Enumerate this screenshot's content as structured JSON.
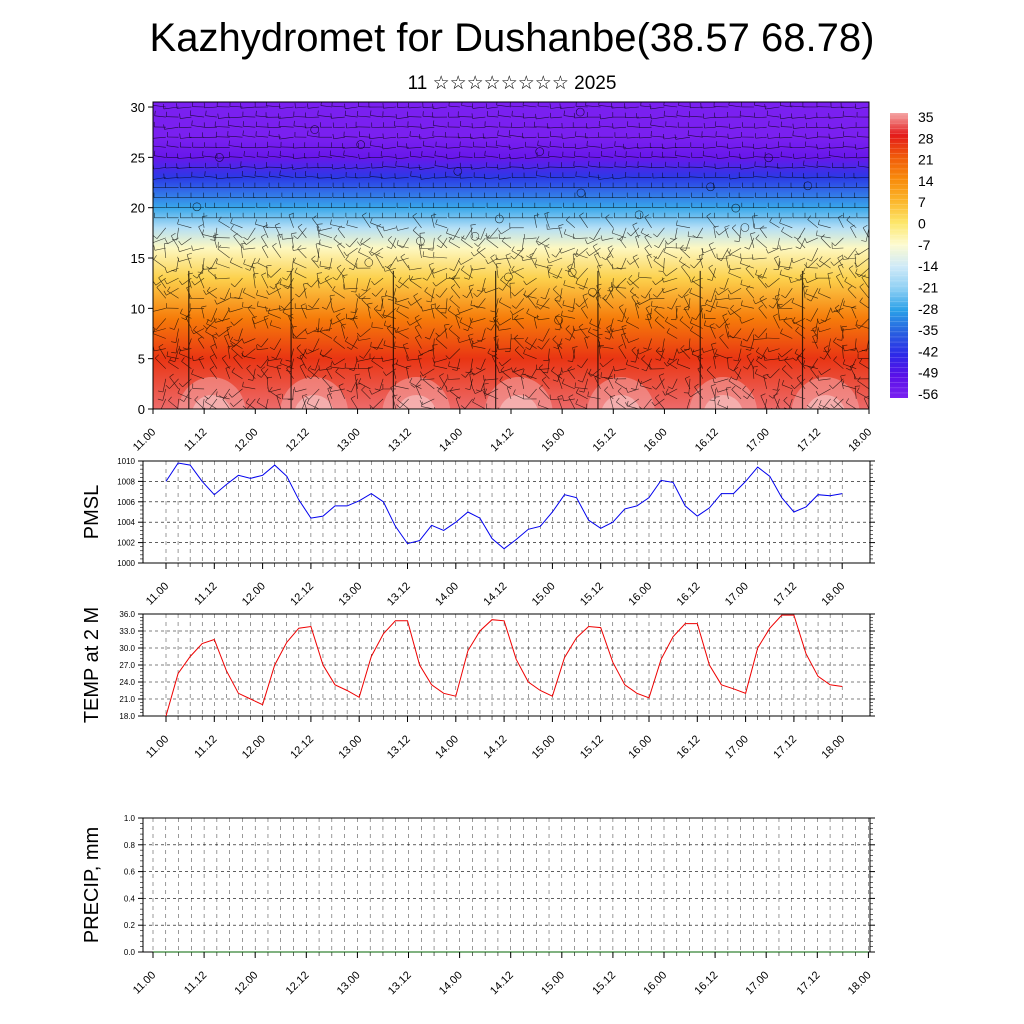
{
  "header": {
    "title": "Kazhydromet for Dushanbe(38.57 68.78)",
    "subtitle": "11 ☆☆☆☆☆☆☆☆ 2025"
  },
  "chart_data": [
    {
      "id": "temperature-cross-section",
      "type": "heatmap",
      "title": "",
      "xlabel": "",
      "ylabel": "",
      "x_tick_labels": [
        "11.00",
        "11.12",
        "12.00",
        "12.12",
        "13.00",
        "13.12",
        "14.00",
        "14.12",
        "15.00",
        "15.12",
        "16.00",
        "16.12",
        "17.00",
        "17.12",
        "18.00"
      ],
      "y_ticks": [
        0,
        5,
        10,
        15,
        20,
        25,
        30
      ],
      "ylim": [
        0,
        30.5
      ],
      "colorbar": {
        "labels": [
          "35",
          "28",
          "21",
          "14",
          "7",
          "0",
          "-7",
          "-14",
          "-21",
          "-28",
          "-35",
          "-42",
          "-49",
          "-56"
        ],
        "colors_top_to_bottom": [
          "#f4a6a6",
          "#e41a1a",
          "#f05a0a",
          "#f88a0a",
          "#fbb52a",
          "#fde668",
          "#fdfbd0",
          "#cfeaf8",
          "#8fd0f4",
          "#2aa0e8",
          "#2860e0",
          "#2c2ae8",
          "#5a10e8",
          "#7a20f0"
        ]
      },
      "temperature_profile": [
        {
          "level": 0,
          "value": 32
        },
        {
          "level": 5,
          "value": 25
        },
        {
          "level": 9,
          "value": 16
        },
        {
          "level": 13,
          "value": 3
        },
        {
          "level": 16,
          "value": -6
        },
        {
          "level": 18,
          "value": -17
        },
        {
          "level": 20,
          "value": -27
        },
        {
          "level": 23,
          "value": -40
        },
        {
          "level": 25,
          "value": -52
        },
        {
          "level": 27,
          "value": -57
        },
        {
          "level": 30.5,
          "value": -57
        }
      ],
      "overlay": "wind barbs"
    },
    {
      "id": "pmsl",
      "type": "line",
      "title": "",
      "xlabel": "",
      "ylabel": "PMSL",
      "x_tick_labels": [
        "11.00",
        "11.12",
        "12.00",
        "12.12",
        "13.00",
        "13.12",
        "14.00",
        "14.12",
        "15.00",
        "15.12",
        "16.00",
        "16.12",
        "17.00",
        "17.12",
        "18.00"
      ],
      "y_tick_labels": [
        "1010",
        "1008",
        "1006",
        "1004",
        "1002",
        "1000"
      ],
      "ylim": [
        1000,
        1010
      ],
      "grid": true,
      "series": [
        {
          "color": "#0000ee",
          "values": [
            1008.0,
            1009.8,
            1009.6,
            1008.0,
            1006.7,
            1007.7,
            1008.6,
            1008.3,
            1008.6,
            1009.6,
            1008.5,
            1006.2,
            1004.4,
            1004.6,
            1005.6,
            1005.6,
            1006.1,
            1006.8,
            1006.0,
            1003.6,
            1001.9,
            1002.2,
            1003.7,
            1003.2,
            1004.0,
            1005.0,
            1004.4,
            1002.4,
            1001.4,
            1002.3,
            1003.3,
            1003.6,
            1005.0,
            1006.7,
            1006.4,
            1004.2,
            1003.4,
            1004.0,
            1005.3,
            1005.6,
            1006.4,
            1008.1,
            1007.9,
            1005.6,
            1004.6,
            1005.4,
            1006.8,
            1006.8,
            1008.0,
            1009.4,
            1008.5,
            1006.4,
            1005.0,
            1005.5,
            1006.7,
            1006.6,
            1006.8
          ]
        }
      ]
    },
    {
      "id": "temp-2m",
      "type": "line",
      "title": "",
      "xlabel": "",
      "ylabel": "TEMP at 2 M",
      "x_tick_labels": [
        "11.00",
        "11.12",
        "12.00",
        "12.12",
        "13.00",
        "13.12",
        "14.00",
        "14.12",
        "15.00",
        "15.12",
        "16.00",
        "16.12",
        "17.00",
        "17.12",
        "18.00"
      ],
      "y_tick_labels": [
        "36.0",
        "33.0",
        "30.0",
        "27.0",
        "24.0",
        "21.0",
        "18.0"
      ],
      "ylim": [
        18,
        36
      ],
      "grid": true,
      "series": [
        {
          "color": "#ee0000",
          "values": [
            18.0,
            25.5,
            28.5,
            30.8,
            31.5,
            26.0,
            22.0,
            21.0,
            20.0,
            27.0,
            31.0,
            33.5,
            33.8,
            27.0,
            23.5,
            22.5,
            21.3,
            28.5,
            32.5,
            34.8,
            34.8,
            27.0,
            23.5,
            22.0,
            21.5,
            29.5,
            33.0,
            35.0,
            34.8,
            28.0,
            24.0,
            22.5,
            21.5,
            28.3,
            31.8,
            33.8,
            33.6,
            27.5,
            23.5,
            22.0,
            21.2,
            28.0,
            32.0,
            34.3,
            34.3,
            27.0,
            23.5,
            22.8,
            22.0,
            30.0,
            33.5,
            35.8,
            35.8,
            29.0,
            25.0,
            23.5,
            23.2
          ]
        }
      ]
    },
    {
      "id": "precip",
      "type": "line",
      "title": "",
      "xlabel": "",
      "ylabel": "PRECIP, mm",
      "x_tick_labels": [
        "11.00",
        "11.12",
        "12.00",
        "12.12",
        "13.00",
        "13.12",
        "14.00",
        "14.12",
        "15.00",
        "15.12",
        "16.00",
        "16.12",
        "17.00",
        "17.12",
        "18.00"
      ],
      "y_tick_labels": [
        "1.0",
        "0.8",
        "0.6",
        "0.4",
        "0.2",
        "0.0"
      ],
      "ylim": [
        0,
        1
      ],
      "grid": true,
      "series": [
        {
          "color": "#006400",
          "values": [
            0,
            0,
            0,
            0,
            0,
            0,
            0,
            0,
            0,
            0,
            0,
            0,
            0,
            0,
            0,
            0,
            0,
            0,
            0,
            0,
            0,
            0,
            0,
            0,
            0,
            0,
            0,
            0,
            0,
            0,
            0,
            0,
            0,
            0,
            0,
            0,
            0,
            0,
            0,
            0,
            0,
            0,
            0,
            0,
            0,
            0,
            0,
            0,
            0,
            0,
            0,
            0,
            0,
            0,
            0,
            0,
            0
          ]
        }
      ]
    }
  ]
}
